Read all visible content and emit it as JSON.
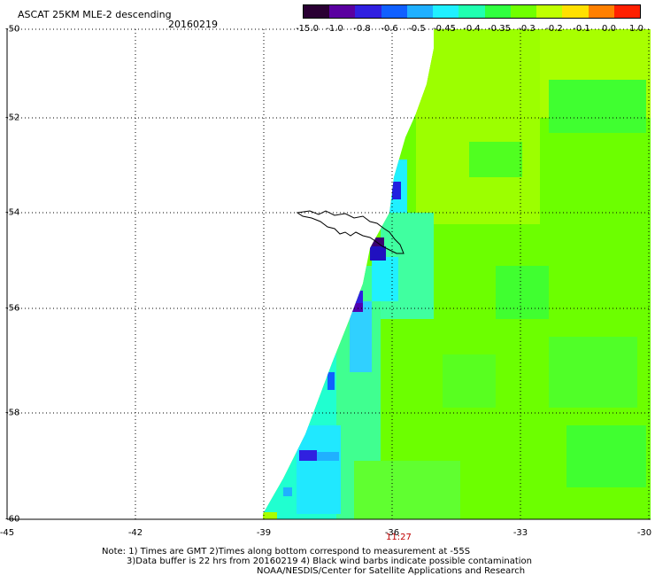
{
  "title": "ASCAT 25KM MLE-2 descending",
  "date": "20160219",
  "colorbar": {
    "labels": [
      "-15.0",
      "-1.0",
      "-0.8",
      "-0.6",
      "-0.5",
      "-0.45",
      "-0.4",
      "-0.35",
      "-0.3",
      "-0.2",
      "-0.1",
      "0.0",
      "1.0"
    ],
    "colors": [
      "#2a0033",
      "#5a00a0",
      "#3020e0",
      "#1060ff",
      "#20b0ff",
      "#20f0ff",
      "#20ffb0",
      "#30ff40",
      "#70ff00",
      "#c0ff00",
      "#ffe000",
      "#ff8000",
      "#ff2000"
    ]
  },
  "lat_labels": [
    "-50",
    "-52",
    "-54",
    "-56",
    "-58",
    "-60"
  ],
  "lon_labels": [
    "-45",
    "-42",
    "-39",
    "-36",
    "-33",
    "-30"
  ],
  "time_label": "11:27",
  "notes": [
    "Note: 1) Times are GMT 2)Times along bottom correspond to measurement at -55S",
    "3)Data buffer is 22 hrs from 20160219 4) Black wind barbs indicate possible contamination",
    "NOAA/NESDIS/Center for Satellite Applications and Research"
  ]
}
